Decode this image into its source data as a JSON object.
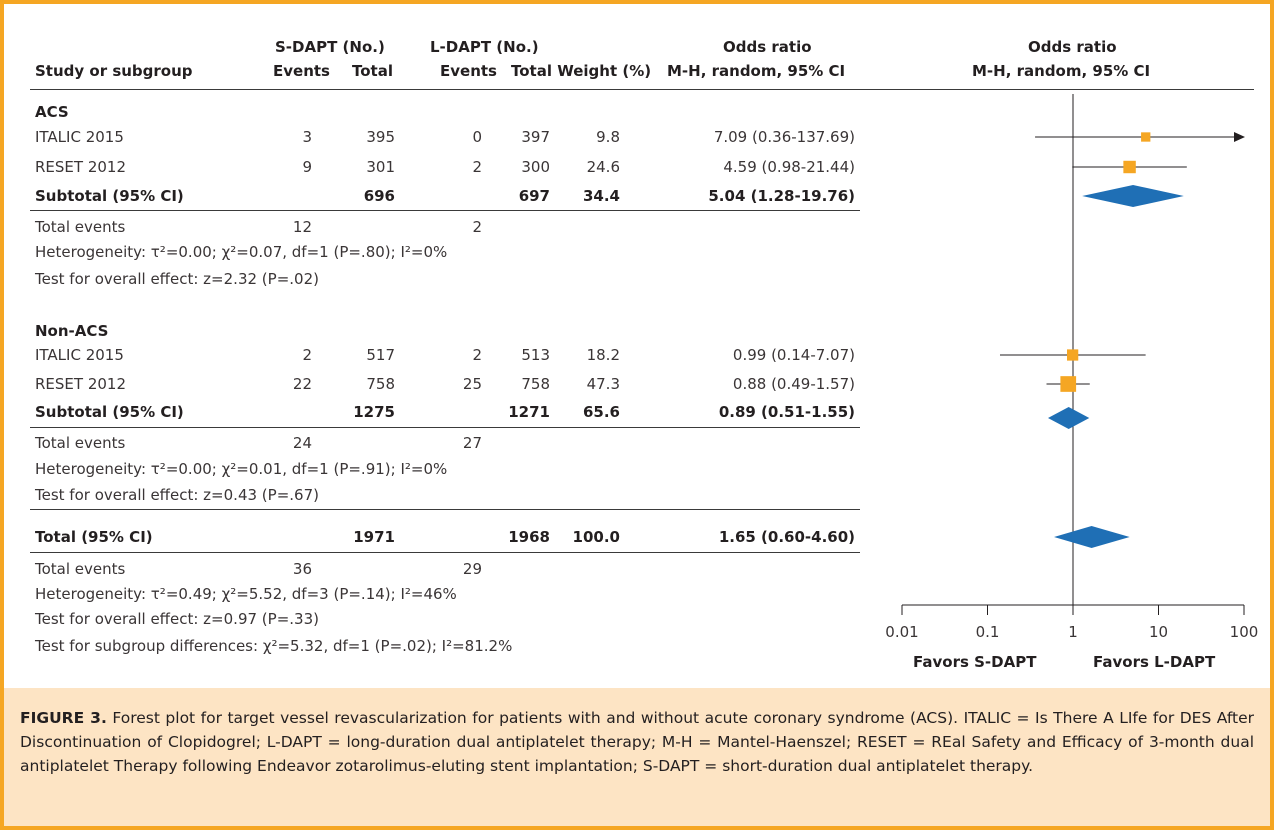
{
  "colors": {
    "border": "#f5a623",
    "caption_bg": "#fde4c4",
    "marker": "#f5a623",
    "diamond": "#1f6fb5"
  },
  "header": {
    "study": "Study or subgroup",
    "sdapt": "S-DAPT (No.)",
    "ldapt": "L-DAPT (No.)",
    "events": "Events",
    "total": "Total",
    "total_weight": "Total Weight (%)",
    "or_title": "Odds ratio",
    "or_method": "M-H, random, 95% CI"
  },
  "groups": [
    {
      "name": "ACS",
      "studies": [
        {
          "study": "ITALIC 2015",
          "s_events": "3",
          "s_total": "395",
          "l_events": "0",
          "l_total": "397",
          "weight": "9.8",
          "or_text": "7.09 (0.36-137.69)"
        },
        {
          "study": "RESET 2012",
          "s_events": "9",
          "s_total": "301",
          "l_events": "2",
          "l_total": "300",
          "weight": "24.6",
          "or_text": "4.59 (0.98-21.44)"
        }
      ],
      "subtotal": {
        "label": "Subtotal (95% CI)",
        "s_total": "696",
        "l_total": "697",
        "weight": "34.4",
        "or_text": "5.04 (1.28-19.76)"
      },
      "total_events": {
        "label": "Total events",
        "s": "12",
        "l": "2"
      },
      "heterogeneity": "Heterogeneity: τ²=0.00; χ²=0.07, df=1 (P=.80); I²=0%",
      "overall": "Test for overall effect: z=2.32 (P=.02)"
    },
    {
      "name": "Non-ACS",
      "studies": [
        {
          "study": "ITALIC 2015",
          "s_events": "2",
          "s_total": "517",
          "l_events": "2",
          "l_total": "513",
          "weight": "18.2",
          "or_text": "0.99 (0.14-7.07)"
        },
        {
          "study": "RESET 2012",
          "s_events": "22",
          "s_total": "758",
          "l_events": "25",
          "l_total": "758",
          "weight": "47.3",
          "or_text": "0.88 (0.49-1.57)"
        }
      ],
      "subtotal": {
        "label": "Subtotal (95% CI)",
        "s_total": "1275",
        "l_total": "1271",
        "weight": "65.6",
        "or_text": "0.89 (0.51-1.55)"
      },
      "total_events": {
        "label": "Total events",
        "s": "24",
        "l": "27"
      },
      "heterogeneity": "Heterogeneity: τ²=0.00; χ²=0.01, df=1 (P=.91); I²=0%",
      "overall": "Test for overall effect: z=0.43 (P=.67)"
    }
  ],
  "total": {
    "label": "Total (95% CI)",
    "s_total": "1971",
    "l_total": "1968",
    "weight": "100.0",
    "or_text": "1.65 (0.60-4.60)",
    "total_events": {
      "label": "Total events",
      "s": "36",
      "l": "29"
    },
    "heterogeneity": "Heterogeneity: τ²=0.49; χ²=5.52, df=3 (P=.14); I²=46%",
    "overall": "Test for overall effect: z=0.97 (P=.33)",
    "subgroup": "Test for subgroup differences: χ²=5.32, df=1 (P=.02); I²=81.2%"
  },
  "axis": {
    "ticks": [
      "0.01",
      "0.1",
      "1",
      "10",
      "100"
    ],
    "favors_left": "Favors S-DAPT",
    "favors_right": "Favors L-DAPT"
  },
  "chart_data": {
    "type": "forest",
    "scale": "log",
    "xlim": [
      0.01,
      100
    ],
    "rows": [
      {
        "name": "ITALIC 2015 (ACS)",
        "or": 7.09,
        "lo": 0.36,
        "hi": 137.69,
        "weight": 9.8,
        "kind": "study"
      },
      {
        "name": "RESET 2012 (ACS)",
        "or": 4.59,
        "lo": 0.98,
        "hi": 21.44,
        "weight": 24.6,
        "kind": "study"
      },
      {
        "name": "Subtotal ACS",
        "or": 5.04,
        "lo": 1.28,
        "hi": 19.76,
        "kind": "diamond"
      },
      {
        "name": "ITALIC 2015 (Non-ACS)",
        "or": 0.99,
        "lo": 0.14,
        "hi": 7.07,
        "weight": 18.2,
        "kind": "study"
      },
      {
        "name": "RESET 2012 (Non-ACS)",
        "or": 0.88,
        "lo": 0.49,
        "hi": 1.57,
        "weight": 47.3,
        "kind": "study"
      },
      {
        "name": "Subtotal Non-ACS",
        "or": 0.89,
        "lo": 0.51,
        "hi": 1.55,
        "kind": "diamond"
      },
      {
        "name": "Total",
        "or": 1.65,
        "lo": 0.6,
        "hi": 4.6,
        "kind": "diamond"
      }
    ]
  },
  "caption": {
    "label": "FIGURE 3.",
    "text": "Forest plot for target vessel revascularization for patients with and without acute coronary syndrome (ACS). ITALIC = Is There A LIfe for DES After Discontinuation of Clopidogrel; L-DAPT = long-duration dual antiplatelet therapy; M-H = Mantel-Haenszel; RESET = REal Safety and Efficacy of 3-month dual antiplatelet Therapy following Endeavor zotarolimus-eluting stent implantation; S-DAPT = short-duration dual antiplatelet therapy."
  }
}
